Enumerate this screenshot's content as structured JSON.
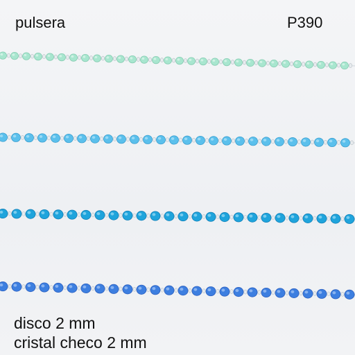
{
  "header": {
    "title": "pulsera",
    "code": "P390"
  },
  "caption": {
    "lines": [
      "disco 2 mm",
      "cristal checo 2 mm"
    ]
  }
}
